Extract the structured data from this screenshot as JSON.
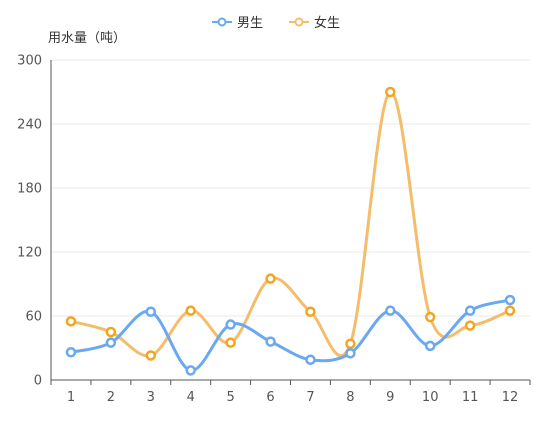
{
  "chart_data": {
    "type": "line",
    "smooth": true,
    "ylabel": "用水量（吨）",
    "xlabel": "",
    "title": "",
    "categories": [
      "1",
      "2",
      "3",
      "4",
      "5",
      "6",
      "7",
      "8",
      "9",
      "10",
      "11",
      "12"
    ],
    "ylim": [
      0,
      300
    ],
    "yticks": [
      0,
      60,
      120,
      180,
      240,
      300
    ],
    "grid": true,
    "legend_position": "top-center",
    "series": [
      {
        "name": "男生",
        "color": "#6aa9f2",
        "values": [
          26,
          35,
          64,
          9,
          52,
          36,
          19,
          25,
          65,
          32,
          65,
          75
        ]
      },
      {
        "name": "女生",
        "color": "#f4bd6b",
        "values": [
          55,
          45,
          23,
          65,
          35,
          95,
          64,
          34,
          270,
          59,
          51,
          65
        ]
      }
    ]
  },
  "legend_colors": {
    "男生": "#6aa9f2",
    "女生": "#f4bd6b"
  },
  "marker_stroke_colors": {
    "男生": "#6aa9f2",
    "女生": "#f4a51c"
  }
}
